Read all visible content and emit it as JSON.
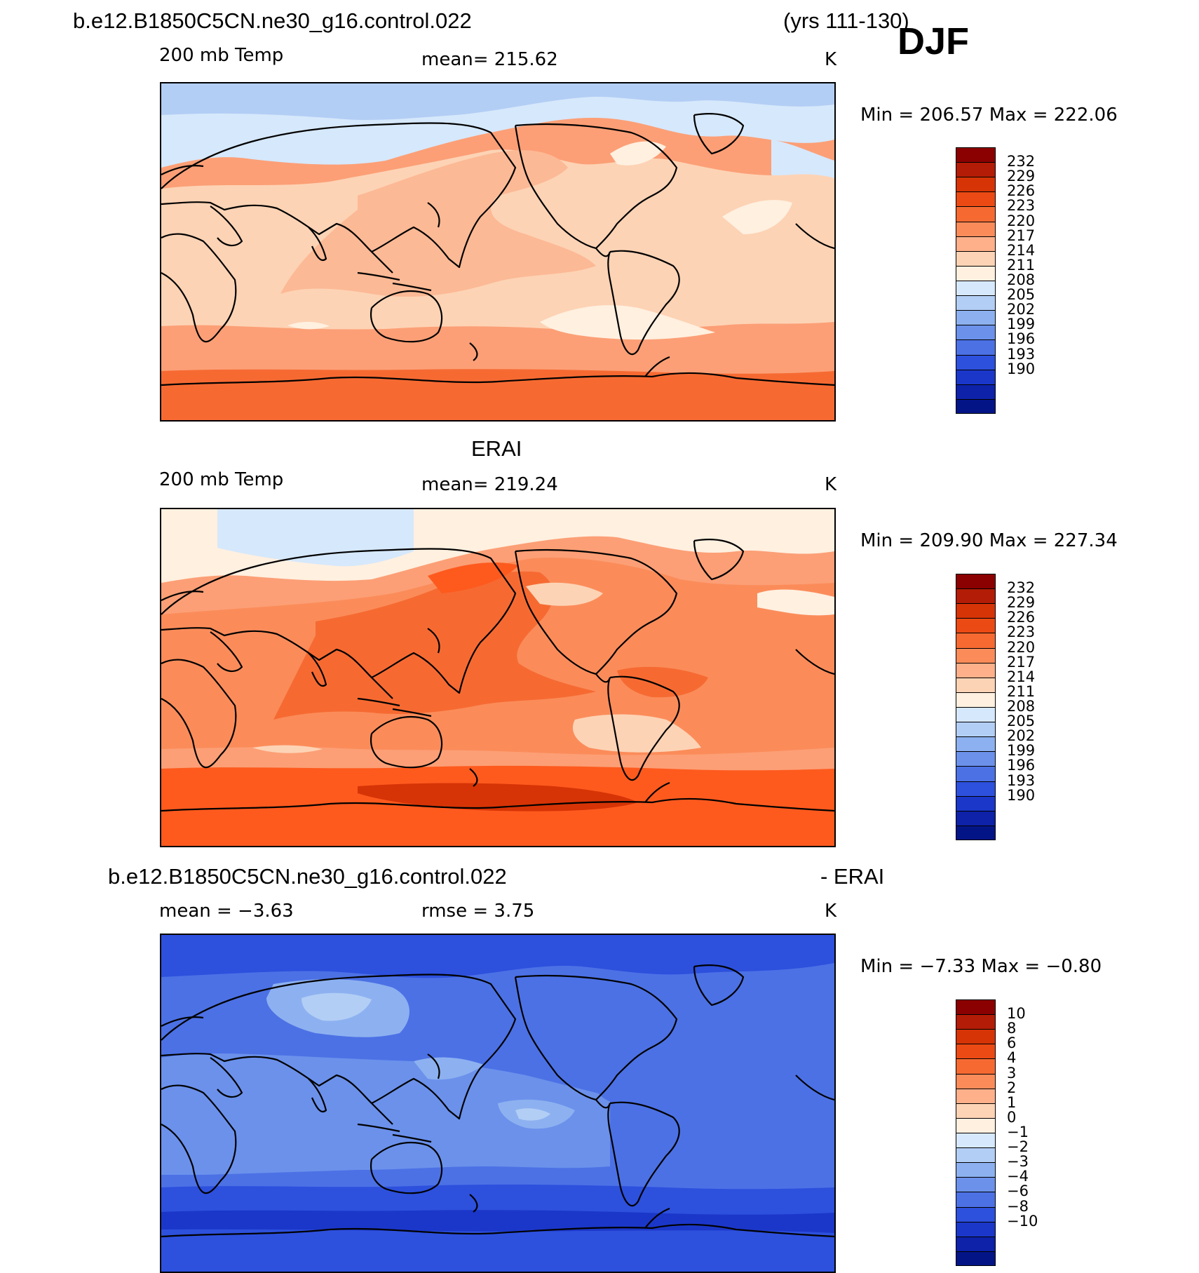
{
  "header": {
    "case_name": "b.e12.B1850C5CN.ne30_g16.control.022",
    "years": "(yrs 111-130)",
    "season": "DJF"
  },
  "panels": [
    {
      "id": "model",
      "title": "",
      "variable": "200 mb Temp",
      "stat_left": "",
      "mean_text": "mean=  215.62",
      "units": "K",
      "minmax_text": "Min  =  206.57  Max  =  222.06",
      "colorbar": {
        "labels": [
          "232",
          "229",
          "226",
          "223",
          "220",
          "217",
          "214",
          "211",
          "208",
          "205",
          "202",
          "199",
          "196",
          "193",
          "190"
        ],
        "colors": [
          "#8b0000",
          "#b31c06",
          "#d63406",
          "#ec4a14",
          "#f66a32",
          "#fb8c5a",
          "#fdb08a",
          "#fdd3b5",
          "#fff0e0",
          "#d6e8fb",
          "#b3cef5",
          "#8db1f0",
          "#6b91eb",
          "#4c71e5",
          "#2d50dd",
          "#1b37c9",
          "#0d22a8",
          "#031586"
        ]
      },
      "field_regions": [
        "polar-cold-band",
        "arctic-warm-band",
        "pacific-warm-pool",
        "indian-ocean-band",
        "subtropical-band",
        "southern-ocean-warm",
        "antarctic-band"
      ],
      "field_colors": [
        "#b3cef5",
        "#d6e8fb",
        "#fdd3b5",
        "#fcb995",
        "#fb8c5a",
        "#fff0e0",
        "#f66a32",
        "#fc9f76"
      ]
    },
    {
      "id": "obs",
      "title": "ERAI",
      "variable": "200 mb Temp",
      "stat_left": "",
      "mean_text": "mean=  219.24",
      "units": "K",
      "minmax_text": "Min  =  209.90  Max  =  227.34",
      "colorbar": {
        "labels": [
          "232",
          "229",
          "226",
          "223",
          "220",
          "217",
          "214",
          "211",
          "208",
          "205",
          "202",
          "199",
          "196",
          "193",
          "190"
        ],
        "colors": [
          "#8b0000",
          "#b31c06",
          "#d63406",
          "#ec4a14",
          "#f66a32",
          "#fb8c5a",
          "#fdb08a",
          "#fdd3b5",
          "#fff0e0",
          "#d6e8fb",
          "#b3cef5",
          "#8db1f0",
          "#6b91eb",
          "#4c71e5",
          "#2d50dd",
          "#1b37c9",
          "#0d22a8",
          "#031586"
        ]
      },
      "field_colors": [
        "#d6e8fb",
        "#fff0e0",
        "#fdd3b5",
        "#fb8c5a",
        "#f66a32",
        "#fc9f76",
        "#fe5a1e",
        "#d63406"
      ]
    },
    {
      "id": "diff",
      "title_left": "b.e12.B1850C5CN.ne30_g16.control.022",
      "title_right": "- ERAI",
      "stat_left": "mean =    −3.63",
      "mean_text": "rmse =     3.75",
      "units": "K",
      "minmax_text": "Min  =    −7.33  Max  =   −0.80",
      "colorbar": {
        "labels": [
          "10",
          "8",
          "6",
          "4",
          "3",
          "2",
          "1",
          "0",
          "−1",
          "−2",
          "−3",
          "−4",
          "−6",
          "−8",
          "−10"
        ],
        "colors": [
          "#8b0000",
          "#b31c06",
          "#d63406",
          "#ec4a14",
          "#f66a32",
          "#fb8c5a",
          "#fdb08a",
          "#fdd3b5",
          "#fff0e0",
          "#d6e8fb",
          "#b3cef5",
          "#8db1f0",
          "#6b91eb",
          "#4c71e5",
          "#2d50dd",
          "#1b37c9",
          "#0d22a8",
          "#031586"
        ]
      },
      "field_colors": [
        "#2d50dd",
        "#4c71e5",
        "#6b91eb",
        "#8db1f0",
        "#b3cef5",
        "#1b37c9"
      ]
    }
  ]
}
